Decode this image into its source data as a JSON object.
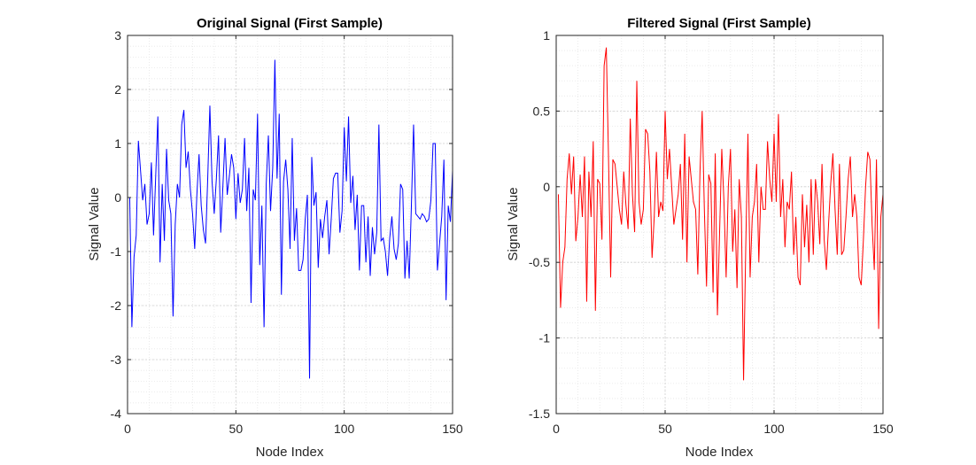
{
  "chart_data": [
    {
      "type": "line",
      "title": "Original Signal (First Sample)",
      "xlabel": "Node Index",
      "ylabel": "Signal Value",
      "xlim": [
        0,
        150
      ],
      "ylim": [
        -4,
        3
      ],
      "xticks": [
        0,
        50,
        100,
        150
      ],
      "yticks": [
        -4,
        -3,
        -2,
        -1,
        0,
        1,
        2,
        3
      ],
      "xtick_labels": [
        "0",
        "50",
        "100",
        "150"
      ],
      "ytick_labels": [
        "-4",
        "-3",
        "-2",
        "-1",
        "0",
        "1",
        "2",
        "3"
      ],
      "grid": true,
      "minor_grid": true,
      "color": "#0000ff",
      "series": [
        {
          "x": [
            1,
            2,
            3,
            4,
            5,
            6,
            7,
            8,
            9,
            10,
            11,
            12,
            13,
            14,
            15,
            16,
            17,
            18,
            19,
            20,
            21,
            22,
            23,
            24,
            25,
            26,
            27,
            28,
            29,
            30,
            31,
            32,
            33,
            34,
            35,
            36,
            37,
            38,
            39,
            40,
            41,
            42,
            43,
            44,
            45,
            46,
            47,
            48,
            49,
            50,
            51,
            52,
            53,
            54,
            55,
            56,
            57,
            58,
            59,
            60,
            61,
            62,
            63,
            64,
            65,
            66,
            67,
            68,
            69,
            70,
            71,
            72,
            73,
            74,
            75,
            76,
            77,
            78,
            79,
            80,
            81,
            82,
            83,
            84,
            85,
            86,
            87,
            88,
            89,
            90,
            91,
            92,
            93,
            94,
            95,
            96,
            97,
            98,
            99,
            100,
            101,
            102,
            103,
            104,
            105,
            106,
            107,
            108,
            109,
            110,
            111,
            112,
            113,
            114,
            115,
            116,
            117,
            118,
            119,
            120,
            121,
            122,
            123,
            124,
            125,
            126,
            127,
            128,
            129,
            130,
            131,
            132,
            133,
            134,
            135,
            136,
            137,
            138,
            139,
            140,
            141,
            142,
            143,
            144,
            145,
            146,
            147,
            148,
            149,
            150
          ],
          "y": [
            0.0,
            -2.4,
            -1.1,
            -0.7,
            1.05,
            0.5,
            -0.05,
            0.25,
            -0.5,
            -0.3,
            0.65,
            -0.7,
            0.4,
            1.5,
            -1.2,
            0.25,
            -0.8,
            0.9,
            -0.05,
            -0.3,
            -2.2,
            -0.5,
            0.25,
            0.0,
            1.35,
            1.62,
            0.55,
            0.85,
            0.15,
            -0.3,
            -0.95,
            0.05,
            0.8,
            -0.15,
            -0.6,
            -0.85,
            0.35,
            1.7,
            0.3,
            -0.3,
            0.35,
            1.15,
            -0.65,
            0.2,
            1.1,
            0.05,
            0.4,
            0.8,
            0.55,
            -0.4,
            0.45,
            -0.1,
            0.15,
            1.1,
            -0.25,
            0.55,
            -1.95,
            0.15,
            -0.05,
            1.55,
            -1.25,
            -0.15,
            -2.4,
            0.25,
            1.15,
            -0.25,
            0.55,
            2.55,
            0.35,
            1.55,
            -1.8,
            0.3,
            0.7,
            0.15,
            -0.95,
            1.1,
            -0.8,
            -0.2,
            -1.35,
            -1.35,
            -1.15,
            -0.4,
            0.05,
            -3.35,
            0.75,
            -0.15,
            0.1,
            -1.3,
            -0.4,
            -0.75,
            -0.35,
            -0.05,
            -1.05,
            -0.4,
            0.35,
            0.45,
            0.45,
            -0.65,
            -0.25,
            1.3,
            0.3,
            1.5,
            -0.1,
            0.4,
            -0.6,
            0.05,
            -1.35,
            -0.15,
            -0.15,
            -1.2,
            -0.35,
            -1.45,
            -0.55,
            -1.05,
            -0.65,
            1.35,
            -0.8,
            -0.75,
            -1.0,
            -1.45,
            -0.75,
            -0.35,
            -0.95,
            -1.15,
            -0.85,
            0.25,
            0.15,
            -1.5,
            -0.8,
            -1.5,
            -0.15,
            1.35,
            -0.3,
            -0.35,
            -0.4,
            -0.3,
            -0.35,
            -0.45,
            -0.4,
            -0.05,
            1.0,
            1.0,
            -1.35,
            -0.85,
            -0.35,
            0.7,
            -1.9,
            -0.15,
            -0.45,
            0.5
          ]
        }
      ]
    },
    {
      "type": "line",
      "title": "Filtered Signal (First Sample)",
      "xlabel": "Node Index",
      "ylabel": "Signal Value",
      "xlim": [
        0,
        150
      ],
      "ylim": [
        -1.5,
        1
      ],
      "xticks": [
        0,
        50,
        100,
        150
      ],
      "yticks": [
        -1.5,
        -1,
        -0.5,
        0,
        0.5,
        1
      ],
      "xtick_labels": [
        "0",
        "50",
        "100",
        "150"
      ],
      "ytick_labels": [
        "-1.5",
        "-1",
        "-0.5",
        "0",
        "0.5",
        "1"
      ],
      "grid": true,
      "minor_grid": true,
      "color": "#ff0000",
      "series": [
        {
          "x": [
            1,
            2,
            3,
            4,
            5,
            6,
            7,
            8,
            9,
            10,
            11,
            12,
            13,
            14,
            15,
            16,
            17,
            18,
            19,
            20,
            21,
            22,
            23,
            24,
            25,
            26,
            27,
            28,
            29,
            30,
            31,
            32,
            33,
            34,
            35,
            36,
            37,
            38,
            39,
            40,
            41,
            42,
            43,
            44,
            45,
            46,
            47,
            48,
            49,
            50,
            51,
            52,
            53,
            54,
            55,
            56,
            57,
            58,
            59,
            60,
            61,
            62,
            63,
            64,
            65,
            66,
            67,
            68,
            69,
            70,
            71,
            72,
            73,
            74,
            75,
            76,
            77,
            78,
            79,
            80,
            81,
            82,
            83,
            84,
            85,
            86,
            87,
            88,
            89,
            90,
            91,
            92,
            93,
            94,
            95,
            96,
            97,
            98,
            99,
            100,
            101,
            102,
            103,
            104,
            105,
            106,
            107,
            108,
            109,
            110,
            111,
            112,
            113,
            114,
            115,
            116,
            117,
            118,
            119,
            120,
            121,
            122,
            123,
            124,
            125,
            126,
            127,
            128,
            129,
            130,
            131,
            132,
            133,
            134,
            135,
            136,
            137,
            138,
            139,
            140,
            141,
            142,
            143,
            144,
            145,
            146,
            147,
            148,
            149,
            150
          ],
          "y": [
            -0.05,
            -0.8,
            -0.5,
            -0.4,
            0.05,
            0.22,
            -0.05,
            0.2,
            -0.36,
            -0.2,
            0.08,
            -0.2,
            0.2,
            -0.76,
            0.1,
            -0.2,
            0.3,
            -0.82,
            0.05,
            0.02,
            -0.35,
            0.8,
            0.92,
            0.2,
            -0.6,
            0.18,
            0.15,
            0.0,
            -0.15,
            -0.25,
            0.1,
            -0.12,
            -0.28,
            0.45,
            -0.05,
            -0.3,
            0.7,
            -0.1,
            -0.25,
            -0.15,
            0.38,
            0.35,
            0.1,
            -0.47,
            -0.2,
            0.23,
            -0.2,
            -0.1,
            -0.16,
            0.5,
            0.05,
            0.25,
            0.0,
            -0.25,
            -0.15,
            -0.05,
            0.15,
            -0.35,
            0.35,
            -0.5,
            0.2,
            0.05,
            -0.1,
            -0.15,
            -0.58,
            0.1,
            0.5,
            -0.15,
            -0.66,
            0.08,
            0.02,
            -0.7,
            0.22,
            -0.85,
            -0.3,
            0.25,
            -0.1,
            -0.6,
            0.0,
            0.25,
            -0.43,
            -0.15,
            -0.67,
            0.05,
            -0.2,
            -1.28,
            -0.4,
            0.35,
            -0.6,
            -0.2,
            -0.1,
            0.15,
            -0.5,
            0.0,
            -0.15,
            -0.15,
            0.3,
            0.05,
            -0.1,
            0.35,
            -0.1,
            0.48,
            -0.2,
            0.05,
            -0.4,
            -0.1,
            -0.15,
            0.1,
            -0.45,
            -0.2,
            -0.6,
            -0.65,
            -0.05,
            -0.4,
            -0.12,
            -0.5,
            0.05,
            -0.45,
            0.05,
            -0.1,
            -0.38,
            0.15,
            -0.35,
            -0.55,
            -0.25,
            0.02,
            0.22,
            -0.15,
            -0.45,
            0.15,
            -0.45,
            -0.42,
            -0.2,
            0.05,
            0.2,
            -0.2,
            -0.05,
            -0.2,
            -0.6,
            -0.65,
            -0.35,
            0.0,
            0.23,
            0.18,
            -0.25,
            -0.55,
            0.18,
            -0.94,
            -0.2,
            -0.05
          ]
        }
      ]
    }
  ]
}
